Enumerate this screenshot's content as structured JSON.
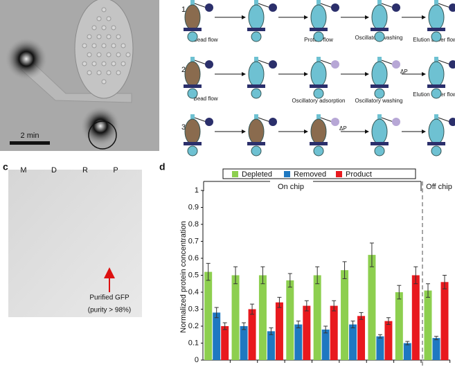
{
  "panel_labels": {
    "c": "c",
    "d": "d"
  },
  "panel_a": {
    "scale_bar": "2 min"
  },
  "panel_b": {
    "rows": [
      "1",
      "2",
      "3"
    ],
    "labels": [
      "Bead flow",
      "Protein flow",
      "Oscillatory washing",
      "Elution buffer flow",
      "Bead flow",
      "Oscillatory adsorption",
      "Oscillatory washing",
      "Elution buffer flow"
    ],
    "pressure": [
      "ΔP",
      "ΔP"
    ]
  },
  "panel_c": {
    "lanes": [
      "M",
      "D",
      "R",
      "P"
    ],
    "annotation": "Purified GFP",
    "purity": "(purity > 98%)"
  },
  "chart_data": {
    "type": "bar",
    "y_label": "Normalized protein concentration",
    "annotations": [
      "On chip",
      "Off chip"
    ],
    "categories": [
      null,
      null,
      null,
      null,
      null,
      null,
      null,
      null,
      null
    ],
    "ylim": [
      0,
      1
    ],
    "yticks": [
      0,
      0.1,
      0.2,
      0.3,
      0.4,
      0.5,
      0.6,
      0.7,
      0.8,
      0.9,
      1
    ],
    "series": [
      {
        "name": "Depleted",
        "color": "#8dcf4f",
        "values": [
          0.52,
          0.5,
          0.5,
          0.47,
          0.5,
          0.53,
          0.62,
          0.4,
          0.41
        ],
        "errors": [
          0.05,
          0.05,
          0.05,
          0.04,
          0.05,
          0.05,
          0.07,
          0.04,
          0.04
        ]
      },
      {
        "name": "Removed",
        "color": "#1f78c1",
        "values": [
          0.28,
          0.2,
          0.17,
          0.21,
          0.18,
          0.21,
          0.14,
          0.1,
          0.13
        ],
        "errors": [
          0.03,
          0.02,
          0.02,
          0.02,
          0.02,
          0.02,
          0.01,
          0.01,
          0.01
        ]
      },
      {
        "name": "Product",
        "color": "#e8191e",
        "values": [
          0.2,
          0.3,
          0.34,
          0.32,
          0.32,
          0.26,
          0.23,
          0.5,
          0.46
        ],
        "errors": [
          0.02,
          0.03,
          0.03,
          0.03,
          0.03,
          0.02,
          0.02,
          0.05,
          0.04
        ]
      }
    ]
  }
}
